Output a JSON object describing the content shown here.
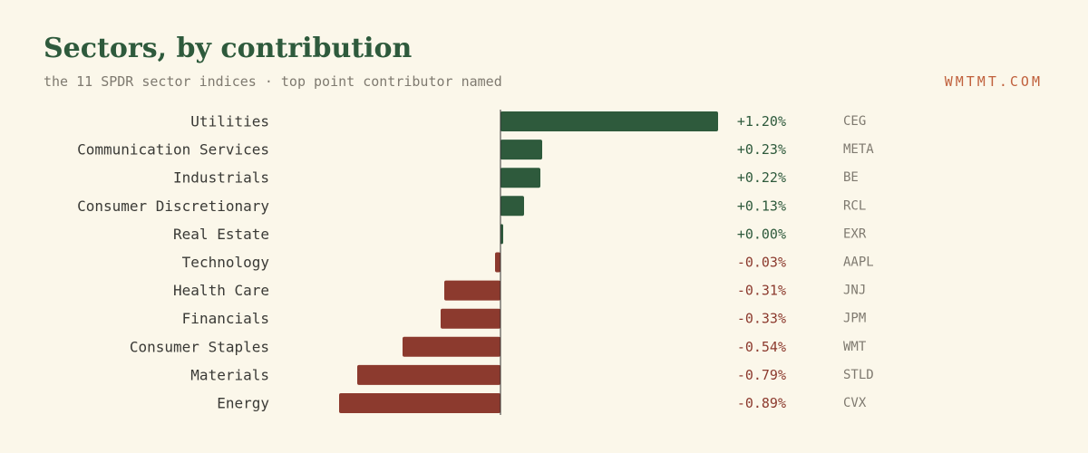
{
  "header": {
    "title": "Sectors, by contribution",
    "subtitle": "the 11 SPDR sector indices · top point contributor named",
    "brand": "WMTMT.COM"
  },
  "colors": {
    "positive": "#2e5a3c",
    "negative": "#8c3a2e",
    "label": "#3a3a36",
    "ticker": "#7f7a70",
    "axis": "#333333"
  },
  "chart_data": {
    "type": "bar",
    "orientation": "horizontal",
    "value_unit": "%",
    "categories": [
      "Utilities",
      "Communication Services",
      "Industrials",
      "Consumer Discretionary",
      "Real Estate",
      "Technology",
      "Health Care",
      "Financials",
      "Consumer Staples",
      "Materials",
      "Energy"
    ],
    "values": [
      1.2,
      0.23,
      0.22,
      0.13,
      0.0,
      -0.03,
      -0.31,
      -0.33,
      -0.54,
      -0.79,
      -0.89
    ],
    "value_labels": [
      "+1.20%",
      "+0.23%",
      "+0.22%",
      "+0.13%",
      "+0.00%",
      "-0.03%",
      "-0.31%",
      "-0.33%",
      "-0.54%",
      "-0.79%",
      "-0.89%"
    ],
    "top_contributors": [
      "CEG",
      "META",
      "BE",
      "RCL",
      "EXR",
      "AAPL",
      "JNJ",
      "JPM",
      "WMT",
      "STLD",
      "CVX"
    ],
    "xlim": [
      -0.89,
      1.2
    ],
    "grid": false,
    "legend": "none"
  }
}
